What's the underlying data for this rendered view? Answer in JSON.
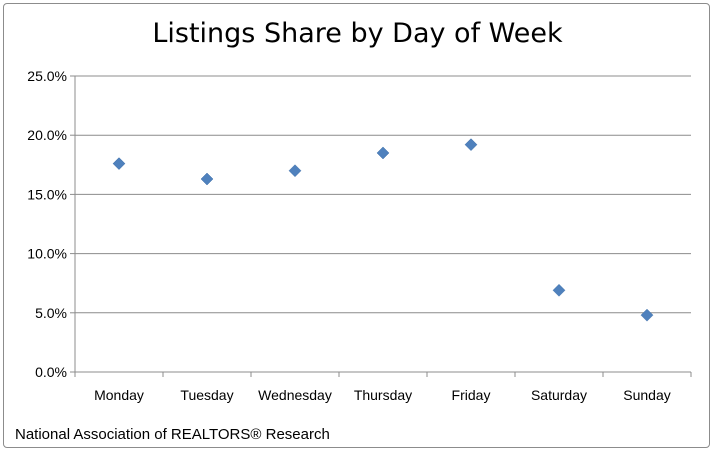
{
  "chart_data": {
    "type": "scatter",
    "title": "Listings Share by Day of Week",
    "categories": [
      "Monday",
      "Tuesday",
      "Wednesday",
      "Thursday",
      "Friday",
      "Saturday",
      "Sunday"
    ],
    "values": [
      0.176,
      0.163,
      0.17,
      0.185,
      0.192,
      0.069,
      0.048
    ],
    "ylim": [
      0,
      0.25
    ],
    "yticks": [
      0,
      0.05,
      0.1,
      0.15,
      0.2,
      0.25
    ],
    "ytick_labels": [
      "0.0%",
      "5.0%",
      "10.0%",
      "15.0%",
      "20.0%",
      "25.0%"
    ],
    "grid": true,
    "marker": "diamond",
    "series_color": "#4f81bd"
  },
  "source_note": "National Association of REALTORS®  Research"
}
